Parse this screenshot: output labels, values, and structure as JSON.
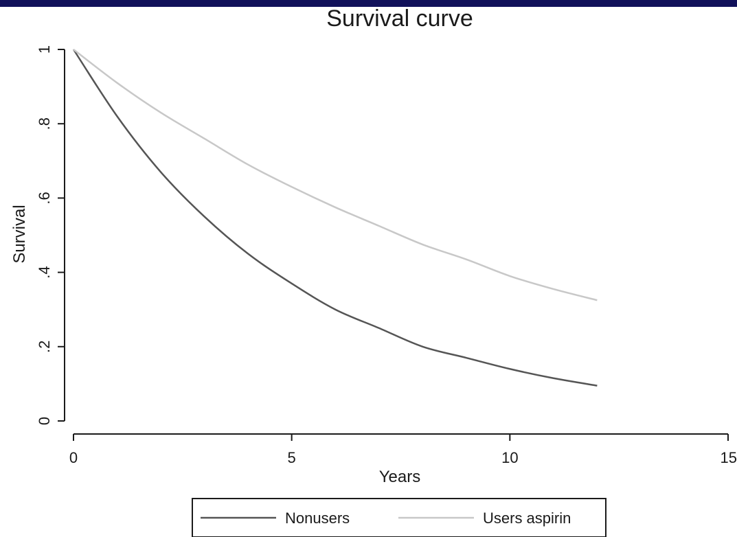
{
  "chart_data": {
    "type": "line",
    "title": "Survival curve",
    "xlabel": "Years",
    "ylabel": "Survival",
    "xlim": [
      0,
      15
    ],
    "ylim": [
      0,
      1
    ],
    "x_ticks": [
      {
        "value": 0,
        "label": "0"
      },
      {
        "value": 5,
        "label": "5"
      },
      {
        "value": 10,
        "label": "10"
      },
      {
        "value": 15,
        "label": "15"
      }
    ],
    "y_ticks": [
      {
        "value": 0,
        "label": "0"
      },
      {
        "value": 0.2,
        "label": ".2"
      },
      {
        "value": 0.4,
        "label": ".4"
      },
      {
        "value": 0.6,
        "label": ".6"
      },
      {
        "value": 0.8,
        "label": ".8"
      },
      {
        "value": 1,
        "label": "1"
      }
    ],
    "grid": false,
    "legend_position": "bottom",
    "series": [
      {
        "name": "Nonusers",
        "color": "#555555",
        "x": [
          0,
          1,
          2,
          3,
          4,
          5,
          6,
          7,
          8,
          9,
          10,
          11,
          12
        ],
        "y": [
          1.0,
          0.82,
          0.67,
          0.55,
          0.45,
          0.37,
          0.3,
          0.25,
          0.2,
          0.17,
          0.14,
          0.115,
          0.095
        ]
      },
      {
        "name": "Users aspirin",
        "color": "#c8c8c8",
        "x": [
          0,
          1,
          2,
          3,
          4,
          5,
          6,
          7,
          8,
          9,
          10,
          11,
          12
        ],
        "y": [
          1.0,
          0.91,
          0.83,
          0.76,
          0.69,
          0.63,
          0.575,
          0.525,
          0.475,
          0.435,
          0.39,
          0.355,
          0.325
        ]
      }
    ]
  }
}
